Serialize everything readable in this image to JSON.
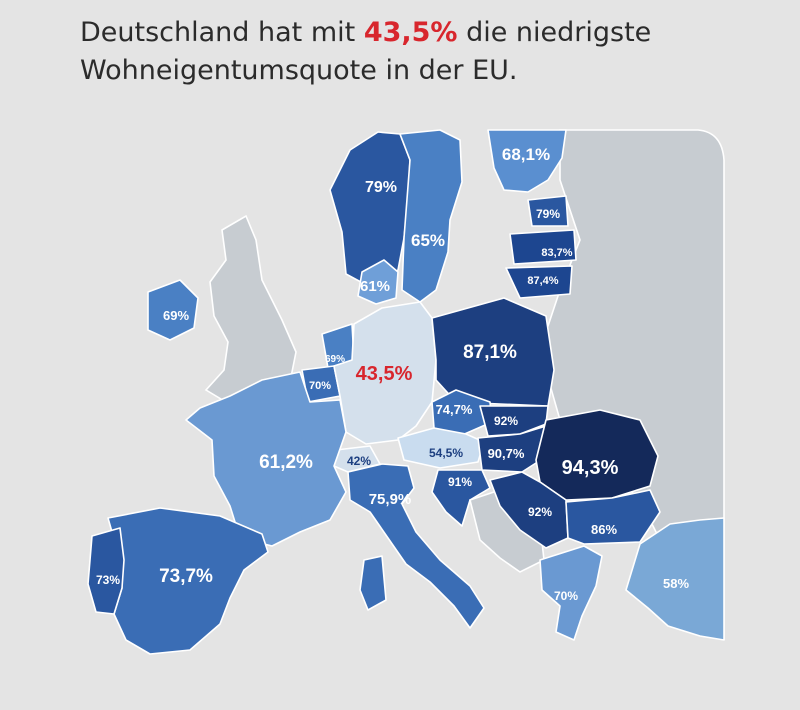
{
  "headline": {
    "part1": "Deutschland hat mit ",
    "highlight": "43,5%",
    "part2": " die niedrigste",
    "line2": "Wohneigentumsquote in der EU."
  },
  "colors": {
    "highlight": "#d8262d",
    "background": "#e4e4e4",
    "non_eu": "#c7ccd1",
    "sea": "#e4e4e4",
    "scale_low": "#d4e0ec",
    "scale_high": "#14295a"
  },
  "map": {
    "countries": [
      {
        "id": "norway",
        "label": "79%"
      },
      {
        "id": "sweden",
        "label": "65%"
      },
      {
        "id": "finland",
        "label": "68,1%"
      },
      {
        "id": "estonia",
        "label": "79%"
      },
      {
        "id": "latvia",
        "label": "83,7%"
      },
      {
        "id": "lithuania",
        "label": "87,4%"
      },
      {
        "id": "denmark",
        "label": "61%"
      },
      {
        "id": "ireland",
        "label": "69%"
      },
      {
        "id": "netherlands",
        "label": "69%"
      },
      {
        "id": "belgium",
        "label": "70%"
      },
      {
        "id": "germany",
        "label": "43,5%"
      },
      {
        "id": "poland",
        "label": "87,1%"
      },
      {
        "id": "czechia",
        "label": "74,7%"
      },
      {
        "id": "slovakia",
        "label": "92%"
      },
      {
        "id": "austria",
        "label": "54,5%"
      },
      {
        "id": "hungary",
        "label": "90,7%"
      },
      {
        "id": "romania",
        "label": "94,3%"
      },
      {
        "id": "switzerland",
        "label": "42%"
      },
      {
        "id": "france",
        "label": "61,2%"
      },
      {
        "id": "italy",
        "label": "75,9%"
      },
      {
        "id": "croatia",
        "label": "91%"
      },
      {
        "id": "serbia",
        "label": "92%"
      },
      {
        "id": "bulgaria",
        "label": "86%"
      },
      {
        "id": "greece",
        "label": "70%"
      },
      {
        "id": "turkey",
        "label": "58%"
      },
      {
        "id": "spain",
        "label": "73,7%"
      },
      {
        "id": "portugal",
        "label": "73%"
      }
    ]
  }
}
